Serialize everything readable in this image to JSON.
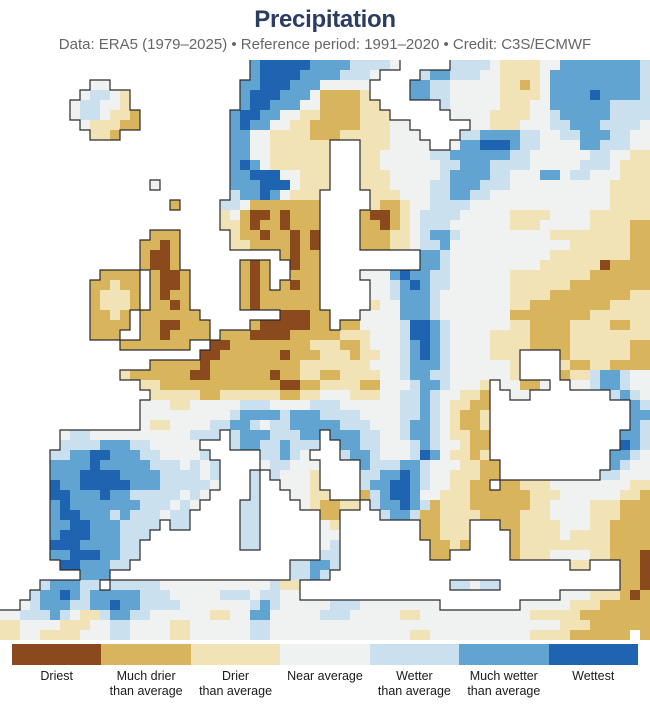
{
  "header": {
    "title": "Precipitation",
    "subtitle": "Data: ERA5 (1979–2025) • Reference period: 1991–2020 • Credit: C3S/ECMWF"
  },
  "palette": {
    "ocean": "#ffffff",
    "coastline": "#2b2b2b"
  },
  "legend": {
    "items": [
      {
        "label": "Driest",
        "line1": "Driest",
        "line2": "",
        "color": "#8a4a1e"
      },
      {
        "label": "Much drier than average",
        "line1": "Much drier",
        "line2": "than average",
        "color": "#d8b45c"
      },
      {
        "label": "Drier than average",
        "line1": "Drier",
        "line2": "than average",
        "color": "#f2e3b7"
      },
      {
        "label": "Near average",
        "line1": "Near average",
        "line2": "",
        "color": "#f0f1f1"
      },
      {
        "label": "Wetter than average",
        "line1": "Wetter",
        "line2": "than average",
        "color": "#cbe0ef"
      },
      {
        "label": "Much wetter than average",
        "line1": "Much wetter",
        "line2": "than average",
        "color": "#61a4d1"
      },
      {
        "label": "Wettest",
        "line1": "Wettest",
        "line2": "",
        "color": "#1e64b0"
      }
    ]
  },
  "map": {
    "cols": 65,
    "rows": 58,
    "cell": 10,
    "legend_codes": {
      "1": "driest",
      "2": "much-drier",
      "3": "drier",
      "4": "near-average",
      "5": "wetter",
      "6": "much-wetter",
      "7": "wettest",
      ".": "ocean"
    },
    "grid": [
      ".........................677777666655554.....55554333344666666665",
      ".........................6777766665554....56655544333346666666665",
      ".........44.............6677766644444....665544444332346666666665",
      "........45543...........6777666422223....665544444333346666766665",
      ".......455443...........67766644222233......544444333446666665555",
      ".......4554332.........6776644332222333......44443333445666665555",
      "........433322.........676644332222233344......443334445566655554",
      ".........332...........6644333322233333444....5566665544556665544",
      ".......................6644333333...3334444..46677765544446655544",
      ".......................6644333333...33444445566666655444444554433",
      ".......................6764333333...33444444556665555444445554333",
      ".......................6677744333...33344444566665544466455444333",
      "...............4.......6667774333...33344445566655544444444443333",
      ".......................566764333.....3334445566554444444444443333",
      ".................2....5542222222.....3223445555444444444444443333",
      "......................3421121222....21123455554444433334444333333",
      "......................3321221222....22123455544444433344444333322",
      "...............222.....322122121....22233456654444444443333333322",
      "..............2212.....332222121....22233455644444444444433333322",
      "..............2112..........2122..........66544444444443333333322",
      "..............2112......212..122..........66544444444433333312222",
      "..........2222.2112.....212..222....44467665544444433333333222222",
      ".........22322.2112.....212.2122.....4456765544444433333322222222",
      ".........23332.2122.....21222222.....4456665444444433332222222233",
      ".........23332.2212.....21222222.....3446665444444433222222223333",
      ".........2232.222222........11122...44446665444444422222222333333",
      ".........2222.2211222....21111122.2244445776544444433222233332233",
      ".........222..2212222.2221111222223334445776544443333222233333333",
      "............2222222..11222222223332234445676544443333222233333322",
      "....................11222222122233323344567654444333....233333322",
      "...............2222212222222223333333444566654444443....322332222",
      "............3222222112222221223322333344566554444443....233566544",
      "..............33222222222222112233332244456654443.44224..44566544",
      "...............3333322333333223344433344556544332..44........5654",
      "..............44433444445554444555444444556543322..............65",
      "..............44444444456666566655554444556543223..............66",
      "..............43344445566545566666555444566543223..............65",
      "......4554444444444555.566655566.6665544566543322.............665",
      "......55556665544444...566556555..665544456544322.............765",
      ".....5566776665544445.....55654...566544457643323............6654",
      ".....66667666665554545....455444....65556654443322...........6544",
      ".....66677776666555545...5.54443....55667654433322..........55444",
      ".....76677777666555554...5..4443....5667765443322.223334444444433",
      ".....7766676655555454....5...4433...25677644333222222333444444332",
      ".....676666666555454....55....432233.5667652333222222334444333222",
      ".....67766656555455.....55......22....566522333322223334444333222",
      ".....66776665555.55.....55......43........22333...223333444332222",
      ".....6777666555.........55......44........22333....23333433332222",
      ".....777666655..........55......45.........2232....23333333332222",
      ".....667776655..................55.........22......23334444332221",
      "......7766655................55665.......................33...221",
      "........666..................5565.............................221",
      "....566655.5555544444444444533...............55455............221",
      "...566765666665554444455545544..........................444333212",
      "..456665566766555544444445654444455544444444........4444433322222",
      "44555654335665544444433446644444555444443344444444444333332222222",
      "33444433344554444334444445544444444444444444444444444444333222222222",
      "334433334445544443344444455444444444444443344444444443333222222 22"
    ]
  }
}
